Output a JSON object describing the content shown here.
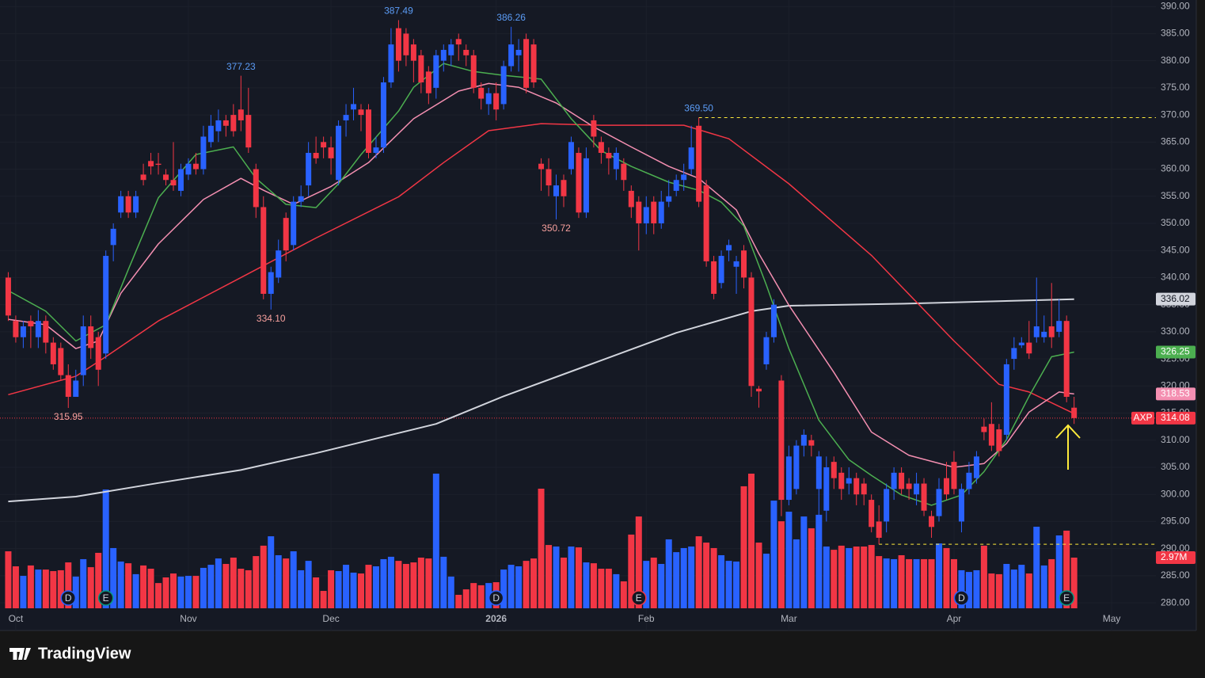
{
  "chart_data": {
    "type": "candlestick",
    "symbol": "AXP",
    "brand": "TradingView",
    "up_color": "#2962ff",
    "down_color": "#f23645",
    "grid": true,
    "xlim": [
      -1.1,
      152.9
    ],
    "xticks": [
      {
        "value": 1,
        "label": "Oct"
      },
      {
        "value": 24,
        "label": "Nov"
      },
      {
        "value": 43,
        "label": "Dec"
      },
      {
        "value": 65,
        "label": "2026"
      },
      {
        "value": 85,
        "label": "Feb"
      },
      {
        "value": 104,
        "label": "Mar"
      },
      {
        "value": 126,
        "label": "Apr"
      },
      {
        "value": 147,
        "label": "May"
      }
    ],
    "ylim": [
      278.7,
      391.2
    ],
    "yticks": [
      {
        "value": 390,
        "label": "390.00"
      },
      {
        "value": 385,
        "label": "385.00"
      },
      {
        "value": 380,
        "label": "380.00"
      },
      {
        "value": 375,
        "label": "375.00"
      },
      {
        "value": 370,
        "label": "370.00"
      },
      {
        "value": 365,
        "label": "365.00"
      },
      {
        "value": 360,
        "label": "360.00"
      },
      {
        "value": 355,
        "label": "355.00"
      },
      {
        "value": 350,
        "label": "350.00"
      },
      {
        "value": 345,
        "label": "345.00"
      },
      {
        "value": 340,
        "label": "340.00"
      },
      {
        "value": 335,
        "label": "335.00"
      },
      {
        "value": 330,
        "label": "330.00"
      },
      {
        "value": 325,
        "label": "325.00"
      },
      {
        "value": 320,
        "label": "320.00"
      },
      {
        "value": 315,
        "label": "315.00"
      },
      {
        "value": 310,
        "label": "310.00"
      },
      {
        "value": 305,
        "label": "305.00"
      },
      {
        "value": 300,
        "label": "300.00"
      },
      {
        "value": 295,
        "label": "295.00"
      },
      {
        "value": 290,
        "label": "290.00"
      },
      {
        "value": 285,
        "label": "285.00"
      },
      {
        "value": 280,
        "label": "280.00"
      }
    ],
    "candles": {
      "open": [
        340,
        332,
        329,
        332,
        329,
        332,
        328,
        327,
        322,
        318,
        322,
        331,
        329,
        326,
        346,
        352,
        355,
        352,
        359,
        361.5,
        361,
        359,
        358,
        356,
        359,
        361,
        360,
        365,
        367,
        369,
        370,
        371,
        370,
        360,
        353,
        337,
        340,
        351,
        346,
        354,
        357,
        363,
        365,
        364,
        358,
        369,
        371,
        371,
        371,
        363,
        364,
        376,
        386,
        385,
        383,
        381,
        378,
        375,
        380,
        381,
        384,
        382,
        381,
        375,
        372,
        374,
        372,
        379,
        381,
        384,
        383,
        361,
        360,
        355,
        358,
        360,
        363,
        352,
        369,
        365,
        363,
        360,
        361,
        356,
        354,
        350,
        354,
        350,
        354,
        356,
        358,
        360,
        368,
        357,
        343,
        339,
        345,
        342,
        345,
        340,
        319.5,
        324,
        329,
        321,
        299,
        301,
        309,
        310,
        301,
        297,
        306,
        304,
        302,
        303,
        302,
        299,
        295,
        295,
        301,
        304,
        302,
        300,
        302,
        296,
        296,
        303,
        306,
        295,
        301,
        303,
        312.5,
        313,
        312,
        311,
        325,
        327.5,
        328,
        329,
        329,
        331,
        330,
        332,
        316
      ],
      "high": [
        341,
        333,
        332,
        333,
        334,
        333,
        329,
        328,
        324,
        323,
        333,
        333,
        330,
        345,
        350,
        356,
        356,
        356,
        361,
        363,
        363,
        360,
        365,
        361,
        362,
        363,
        368,
        370,
        371,
        370,
        372,
        377.23,
        375,
        361,
        355,
        342,
        347,
        352,
        355,
        357,
        365,
        366,
        366,
        366,
        369,
        372,
        375,
        372,
        372,
        366,
        377,
        386,
        387.49,
        386,
        384,
        382,
        379,
        382,
        383,
        384,
        385,
        383,
        382,
        376,
        375,
        376,
        380,
        386.26,
        384,
        385,
        384,
        362,
        362,
        359,
        359,
        366,
        364,
        364,
        370,
        366,
        364,
        364,
        362,
        357,
        355,
        355,
        355,
        356,
        358,
        359,
        361,
        368,
        369.5,
        358,
        344,
        345,
        347,
        344,
        346,
        341,
        320,
        330,
        336,
        322,
        309,
        310,
        312,
        311,
        308,
        307,
        307,
        305,
        305,
        304,
        303,
        300,
        298,
        302,
        305,
        305,
        303,
        304,
        303,
        297,
        303,
        306,
        308,
        302,
        306,
        308,
        314,
        317,
        313,
        325,
        329,
        329,
        332,
        340,
        333,
        339,
        336,
        333,
        318
      ],
      "low": [
        332,
        328,
        327,
        327,
        327,
        326,
        323,
        321,
        315.95,
        318,
        320,
        325,
        320,
        325,
        343,
        351,
        351,
        351,
        357,
        359,
        359,
        357,
        356,
        355,
        358,
        359,
        359,
        364,
        365,
        366,
        366,
        367,
        363,
        351,
        336,
        334.1,
        339,
        343,
        345,
        353,
        355,
        361,
        362,
        359,
        357,
        366,
        369,
        367,
        362,
        362,
        363,
        375,
        378,
        379,
        376,
        374,
        372,
        373,
        378,
        379,
        380,
        379,
        374,
        371,
        370,
        369,
        371,
        378,
        378,
        374,
        375,
        356,
        355,
        350.72,
        353,
        359,
        351,
        351,
        364,
        361,
        359,
        358,
        356,
        351,
        345,
        348,
        348,
        349,
        353,
        355,
        356,
        359,
        353,
        342,
        336,
        338,
        343,
        337,
        338,
        318,
        316,
        323,
        328,
        296,
        298,
        300,
        307,
        307,
        296,
        295,
        301,
        299,
        300,
        298,
        298,
        293,
        290.8,
        293,
        299,
        300,
        299,
        298,
        296,
        292,
        295,
        299,
        300,
        293,
        300,
        302,
        310,
        308,
        307,
        310,
        323,
        327,
        325,
        328,
        328,
        327,
        329,
        317,
        313
      ],
      "close": [
        333,
        329,
        331,
        331,
        332,
        328,
        324,
        322,
        318,
        321,
        331,
        327,
        323,
        344,
        349,
        355,
        352,
        355,
        358,
        360.5,
        360.8,
        358,
        357,
        360,
        361,
        360,
        366,
        368,
        369,
        368,
        367,
        369,
        364,
        353,
        337,
        341,
        345,
        345,
        354,
        355,
        363,
        362,
        364,
        362,
        368,
        370,
        372,
        370,
        363,
        364,
        376,
        383,
        380,
        381,
        380,
        376,
        374,
        381,
        382,
        383,
        383,
        381,
        375,
        373,
        374,
        371,
        379,
        383,
        382,
        375,
        376,
        360,
        357,
        357,
        355,
        365,
        352,
        362,
        366,
        363,
        362,
        363,
        358,
        353,
        350,
        353,
        350,
        354,
        355,
        358,
        359,
        364,
        354,
        343,
        337,
        344,
        346,
        343,
        340,
        320,
        319,
        329,
        335,
        299,
        307,
        309,
        311,
        309,
        307,
        305,
        303,
        301,
        303,
        300,
        300,
        294,
        292,
        301,
        304,
        301,
        301,
        302,
        297,
        294,
        301,
        300,
        301,
        301,
        304,
        307,
        311.5,
        309,
        308,
        324,
        327,
        328,
        326,
        331,
        330,
        329,
        332,
        318,
        314.08
      ]
    },
    "volume": {
      "values": [
        3.34,
        2.46,
        1.9,
        2.51,
        2.27,
        2.27,
        2.18,
        2.23,
        2.69,
        1.86,
        2.88,
        2.41,
        3.25,
        6.96,
        3.53,
        2.74,
        2.64,
        2.0,
        2.51,
        2.32,
        1.48,
        1.81,
        2.04,
        1.86,
        1.9,
        1.9,
        2.37,
        2.55,
        2.92,
        2.6,
        2.97,
        2.32,
        2.23,
        3.06,
        3.67,
        4.22,
        3.11,
        2.92,
        3.34,
        2.23,
        2.78,
        1.81,
        1.02,
        2.23,
        2.18,
        2.55,
        2.09,
        2.04,
        2.55,
        2.46,
        2.88,
        3.02,
        2.78,
        2.6,
        2.69,
        2.97,
        2.92,
        7.89,
        3.02,
        1.86,
        0.79,
        1.11,
        1.48,
        1.35,
        1.48,
        1.53,
        2.27,
        2.55,
        2.46,
        2.78,
        2.92,
        7.01,
        3.71,
        3.62,
        2.97,
        3.62,
        3.57,
        2.69,
        2.64,
        2.32,
        2.32,
        2.0,
        1.58,
        4.32,
        5.38,
        2.78,
        2.97,
        2.6,
        4.04,
        3.29,
        3.53,
        3.62,
        4.22,
        3.85,
        3.53,
        3.11,
        2.78,
        2.74,
        7.15,
        7.89,
        3.85,
        3.2,
        6.31,
        5.1,
        5.66,
        4.04,
        5.38,
        4.69,
        5.48,
        3.62,
        3.43,
        3.67,
        3.53,
        3.62,
        3.62,
        3.71,
        3.06,
        2.92,
        2.88,
        3.11,
        2.88,
        2.88,
        2.88,
        2.88,
        3.8,
        3.53,
        2.88,
        2.23,
        2.13,
        2.23,
        3.67,
        2.04,
        2.0,
        2.6,
        2.27,
        2.55,
        2.04,
        4.78,
        2.51,
        2.88,
        4.27,
        4.55,
        2.97
      ],
      "last_label": "2.97M"
    },
    "series": [
      {
        "color": "#d1d4dc",
        "price_label": true,
        "x": [
          0,
          9,
          20,
          31,
          41,
          57,
          66,
          77,
          89,
          99,
          104,
          120,
          136,
          142
        ],
        "values": [
          298.7,
          299.6,
          302.1,
          304.5,
          307.6,
          313.0,
          318.1,
          323.7,
          329.8,
          333.8,
          334.8,
          335.2,
          335.8,
          336.02
        ]
      },
      {
        "color": "#f23645",
        "price_label": false,
        "x": [
          0,
          9,
          13,
          20,
          31,
          41,
          52,
          58,
          64,
          71,
          79,
          90,
          96,
          104,
          115,
          126,
          132,
          136,
          142
        ],
        "values": [
          318.4,
          321.8,
          325.4,
          332.0,
          340.0,
          347.3,
          354.9,
          361.2,
          367.1,
          368.4,
          368.1,
          368.1,
          365.6,
          357.3,
          344.1,
          328.3,
          320.3,
          318.9,
          314.9
        ]
      },
      {
        "color": "#f48fb1",
        "price_label": true,
        "x": [
          0,
          5,
          9,
          12,
          15,
          20,
          26,
          31,
          34,
          38,
          43,
          48,
          54,
          60,
          64,
          68,
          73,
          78,
          83,
          88,
          92,
          97,
          100,
          104,
          110,
          115,
          120,
          126,
          130,
          133,
          136,
          140,
          142
        ],
        "values": [
          332.3,
          331.3,
          326.9,
          328.3,
          337.1,
          346.2,
          354.4,
          358.3,
          356.1,
          353.5,
          356.8,
          361.2,
          369.3,
          374.4,
          375.8,
          375.1,
          372.2,
          367.8,
          364.1,
          360.5,
          358.3,
          352.5,
          344.4,
          334.9,
          322.5,
          311.5,
          307.2,
          305.0,
          305.7,
          309.4,
          315.2,
          318.9,
          318.53
        ]
      },
      {
        "color": "#4caf50",
        "price_label": true,
        "x": [
          0,
          5,
          9,
          13,
          16,
          20,
          25,
          30,
          33,
          37,
          41,
          44,
          47,
          52,
          54,
          58,
          62,
          66,
          71,
          75,
          79,
          83,
          88,
          92,
          95,
          98,
          101,
          104,
          108,
          112,
          115,
          119,
          123,
          127,
          130,
          133,
          136,
          139,
          142
        ],
        "values": [
          337.6,
          333.8,
          328.3,
          331.3,
          341.5,
          354.7,
          362.7,
          364.1,
          358.3,
          353.5,
          352.9,
          357.3,
          362.7,
          370.7,
          375.1,
          379.5,
          378.0,
          377.3,
          376.6,
          369.3,
          363.4,
          360.5,
          357.6,
          356.1,
          353.9,
          349.5,
          338.6,
          326.9,
          313.7,
          306.4,
          303.5,
          299.9,
          298.0,
          299.9,
          304.2,
          310.1,
          318.1,
          325.4,
          326.25
        ]
      }
    ],
    "extreme_labels": [
      {
        "x": 52,
        "at": "high",
        "label": "387.49"
      },
      {
        "x": 67,
        "at": "high",
        "label": "386.26"
      },
      {
        "x": 31,
        "at": "high",
        "label": "377.23"
      },
      {
        "x": 92,
        "at": "high",
        "label": "369.50"
      },
      {
        "x": 73,
        "at": "low",
        "label": "350.72"
      },
      {
        "x": 35,
        "at": "low",
        "label": "334.10"
      },
      {
        "x": 8,
        "at": "low",
        "label": "315.95"
      }
    ],
    "dashed_levels": [
      {
        "x": 92,
        "at": "high"
      },
      {
        "x": 116,
        "at": "low"
      }
    ],
    "events": [
      {
        "x": 8,
        "label": "D",
        "color": "#2962ff"
      },
      {
        "x": 13,
        "label": "E",
        "color": "#089981"
      },
      {
        "x": 65,
        "label": "D",
        "color": "#2962ff"
      },
      {
        "x": 84,
        "label": "E",
        "color": "#f23645"
      },
      {
        "x": 127,
        "label": "D",
        "color": "#2962ff"
      },
      {
        "x": 141,
        "label": "E",
        "color": "#089981"
      }
    ]
  }
}
